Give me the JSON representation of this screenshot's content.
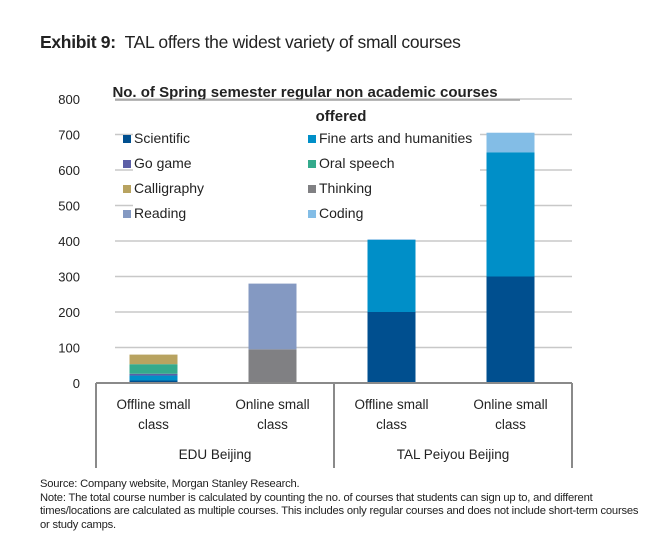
{
  "header": {
    "exhibit_label": "Exhibit 9:",
    "exhibit_title": "TAL offers the widest variety of small courses"
  },
  "chart_data": {
    "type": "bar",
    "stacked": true,
    "title": "No. of Spring semester regular non academic courses offered",
    "title_lines": [
      "No. of Spring semester regular non academic courses",
      "offered"
    ],
    "xlabel": "",
    "ylabel": "",
    "ylim": [
      0,
      800
    ],
    "yticks": [
      0,
      100,
      200,
      300,
      400,
      500,
      600,
      700,
      800
    ],
    "grid": true,
    "legend_position": "top-left",
    "categories": [
      {
        "label_lines": [
          "Offline small",
          "class"
        ],
        "group": "EDU Beijing"
      },
      {
        "label_lines": [
          "Online small",
          "class"
        ],
        "group": "EDU Beijing"
      },
      {
        "label_lines": [
          "Offline small",
          "class"
        ],
        "group": "TAL Peiyou Beijing"
      },
      {
        "label_lines": [
          "Online small",
          "class"
        ],
        "group": "TAL Peiyou Beijing"
      }
    ],
    "groups": [
      "EDU Beijing",
      "TAL Peiyou Beijing"
    ],
    "series": [
      {
        "name": "Scientific",
        "color": "#004f8f",
        "values": [
          7,
          0,
          200,
          300
        ]
      },
      {
        "name": "Fine arts and humanities",
        "color": "#008fc8",
        "values": [
          14,
          0,
          203,
          350
        ]
      },
      {
        "name": "Go game",
        "color": "#5b5ea6",
        "values": [
          5,
          0,
          0,
          0
        ]
      },
      {
        "name": "Oral speech",
        "color": "#34aa8c",
        "values": [
          27,
          0,
          0,
          0
        ]
      },
      {
        "name": "Calligraphy",
        "color": "#b8a360",
        "values": [
          27,
          0,
          0,
          0
        ]
      },
      {
        "name": "Thinking",
        "color": "#808083",
        "values": [
          0,
          95,
          0,
          0
        ]
      },
      {
        "name": "Reading",
        "color": "#8499c2",
        "values": [
          0,
          185,
          0,
          0
        ]
      },
      {
        "name": "Coding",
        "color": "#83bde6",
        "values": [
          0,
          0,
          2,
          55
        ]
      }
    ],
    "legend_order": [
      [
        "Scientific",
        "Fine arts and humanities"
      ],
      [
        "Go game",
        "Oral speech"
      ],
      [
        "Calligraphy",
        "Thinking"
      ],
      [
        "Reading",
        "Coding"
      ]
    ]
  },
  "footer": {
    "source": "Source: Company website, Morgan Stanley Research.",
    "note": "Note: The total course number is calculated by counting the no. of courses that students can sign up to, and different times/locations are calculated as multiple courses. This includes only regular courses and does not include short-term courses or study camps."
  }
}
